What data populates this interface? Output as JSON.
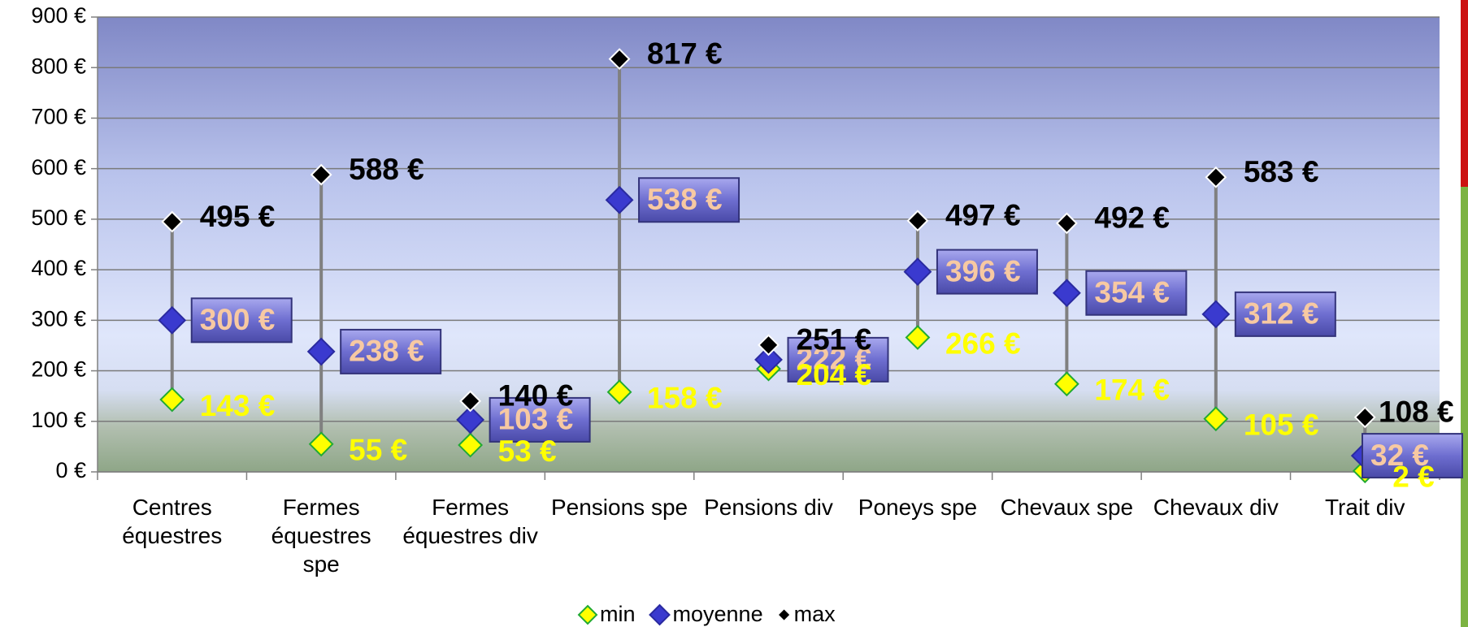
{
  "chart_data": {
    "type": "hilo",
    "categories": [
      "Centres équestres",
      "Fermes équestres spe",
      "Fermes équestres div",
      "Pensions spe",
      "Pensions div",
      "Poneys spe",
      "Chevaux spe",
      "Chevaux div",
      "Trait div"
    ],
    "series": [
      {
        "name": "min",
        "color": "#ffff00",
        "values": [
          143,
          55,
          53,
          158,
          204,
          266,
          174,
          105,
          2
        ],
        "value_labels": [
          "143 €",
          "55 €",
          "53 €",
          "158 €",
          "204 €",
          "266 €",
          "174 €",
          "105 €",
          "2 €"
        ]
      },
      {
        "name": "moyenne",
        "color": "#3a3acf",
        "values": [
          300,
          238,
          103,
          538,
          222,
          396,
          354,
          312,
          32
        ],
        "value_labels": [
          "300 €",
          "238 €",
          "103 €",
          "538 €",
          "222 €",
          "396 €",
          "354 €",
          "312 €",
          "32 €"
        ]
      },
      {
        "name": "max",
        "color": "#000000",
        "values": [
          495,
          588,
          140,
          817,
          251,
          497,
          492,
          583,
          108
        ],
        "value_labels": [
          "495 €",
          "588 €",
          "140 €",
          "817 €",
          "251 €",
          "497 €",
          "492 €",
          "583 €",
          "108 €"
        ]
      }
    ],
    "ylim": [
      0,
      900
    ],
    "yticks": [
      {
        "value": 0,
        "label": "0 €"
      },
      {
        "value": 100,
        "label": "100 €"
      },
      {
        "value": 200,
        "label": "200 €"
      },
      {
        "value": 300,
        "label": "300 €"
      },
      {
        "value": 400,
        "label": "400 €"
      },
      {
        "value": 500,
        "label": "500 €"
      },
      {
        "value": 600,
        "label": "600 €"
      },
      {
        "value": 700,
        "label": "700 €"
      },
      {
        "value": 800,
        "label": "800 €"
      },
      {
        "value": 900,
        "label": "900 €"
      }
    ],
    "grid": true,
    "legend": "bottom"
  }
}
